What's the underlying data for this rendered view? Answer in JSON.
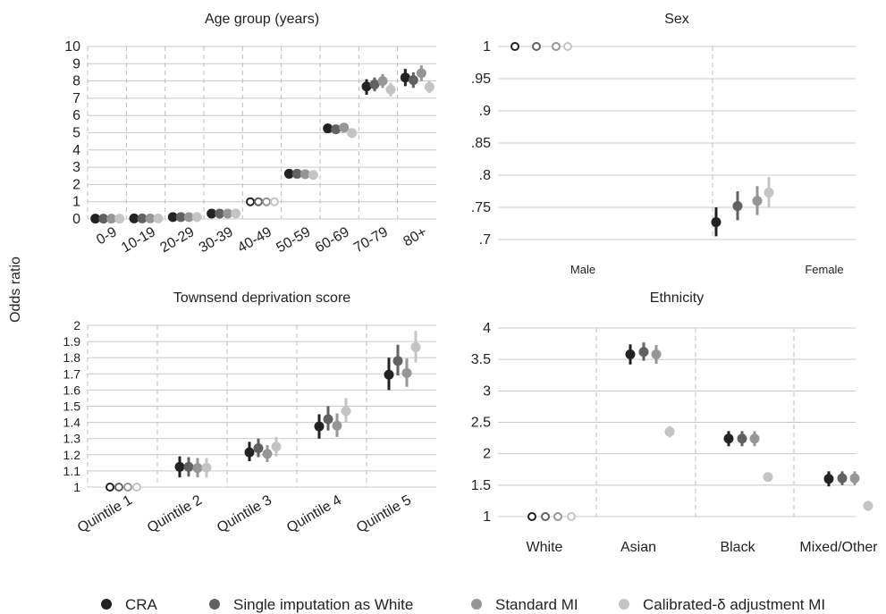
{
  "ylabel": "Odds ratio",
  "colors": {
    "CRA": "#222222",
    "Single imputation as White": "#616161",
    "Standard MI": "#969696",
    "Calibrated-δ adjustment MI": "#c4c4c4",
    "grid": "#c8c8c8",
    "separator": "#bdbdbd"
  },
  "legend": {
    "placement": "bottom",
    "items": [
      "CRA",
      "Single imputation as White",
      "Standard MI",
      "Calibrated-δ adjustment MI"
    ]
  },
  "chart_data": [
    {
      "type": "scatter",
      "title": "Age group (years)",
      "categories": [
        "0-9",
        "10-19",
        "20-29",
        "30-39",
        "40-49",
        "50-59",
        "60-69",
        "70-79",
        "80+"
      ],
      "ylim": [
        0,
        10
      ],
      "yticks": [
        "0",
        "1",
        "2",
        "3",
        "4",
        "5",
        "6",
        "7",
        "8",
        "9",
        "10"
      ],
      "grid": true,
      "reference_category": "40-49",
      "series": [
        {
          "name": "CRA",
          "values": [
            0.02,
            0.03,
            0.11,
            0.31,
            1,
            2.62,
            5.25,
            7.68,
            8.2
          ],
          "ci_low": [
            0.02,
            0.03,
            0.1,
            0.29,
            1,
            2.55,
            5.1,
            7.2,
            7.7
          ],
          "ci_high": [
            0.03,
            0.04,
            0.12,
            0.33,
            1,
            2.7,
            5.4,
            8.1,
            8.7
          ]
        },
        {
          "name": "Single imputation as White",
          "values": [
            0.02,
            0.03,
            0.11,
            0.31,
            1,
            2.62,
            5.2,
            7.8,
            8.05
          ],
          "ci_low": [
            0.02,
            0.03,
            0.1,
            0.29,
            1,
            2.55,
            5.05,
            7.4,
            7.6
          ],
          "ci_high": [
            0.03,
            0.04,
            0.12,
            0.33,
            1,
            2.7,
            5.35,
            8.2,
            8.5
          ]
        },
        {
          "name": "Standard MI",
          "values": [
            0.02,
            0.03,
            0.11,
            0.31,
            1,
            2.6,
            5.3,
            8.0,
            8.45
          ],
          "ci_low": [
            0.02,
            0.03,
            0.1,
            0.29,
            1,
            2.5,
            5.1,
            7.6,
            8.0
          ],
          "ci_high": [
            0.03,
            0.04,
            0.12,
            0.33,
            1,
            2.7,
            5.5,
            8.4,
            8.9
          ]
        },
        {
          "name": "Calibrated-δ adjustment MI",
          "values": [
            0.02,
            0.03,
            0.11,
            0.32,
            1,
            2.55,
            4.98,
            7.5,
            7.65
          ],
          "ci_low": [
            0.02,
            0.03,
            0.1,
            0.3,
            1,
            2.45,
            4.8,
            7.1,
            7.3
          ],
          "ci_high": [
            0.03,
            0.04,
            0.12,
            0.34,
            1,
            2.65,
            5.1,
            7.9,
            8.0
          ]
        }
      ]
    },
    {
      "type": "scatter",
      "title": "Sex",
      "categories": [
        "Male",
        "Female"
      ],
      "ylim": [
        0.7,
        1
      ],
      "yticks": [
        ".7",
        ".75",
        ".8",
        ".85",
        ".9",
        ".95",
        "1"
      ],
      "grid": true,
      "reference_category": "Male",
      "series": [
        {
          "name": "CRA",
          "values": [
            1,
            0.727
          ],
          "ci_low": [
            1,
            0.705
          ],
          "ci_high": [
            1,
            0.75
          ]
        },
        {
          "name": "Single imputation as White",
          "values": [
            1,
            0.752
          ],
          "ci_low": [
            1,
            0.73
          ],
          "ci_high": [
            1,
            0.775
          ]
        },
        {
          "name": "Standard MI",
          "values": [
            1,
            0.76
          ],
          "ci_low": [
            1,
            0.738
          ],
          "ci_high": [
            1,
            0.783
          ]
        },
        {
          "name": "Calibrated-δ adjustment MI",
          "values": [
            1,
            0.773
          ],
          "ci_low": [
            1,
            0.75
          ],
          "ci_high": [
            1,
            0.797
          ]
        }
      ]
    },
    {
      "type": "scatter",
      "title": "Townsend deprivation score",
      "categories": [
        "Quintile 1",
        "Quintile 2",
        "Quintile 3",
        "Quintile 4",
        "Quintile 5"
      ],
      "ylim": [
        1,
        2
      ],
      "yticks": [
        "1",
        "1.1",
        "1.2",
        "1.3",
        "1.4",
        "1.5",
        "1.6",
        "1.7",
        "1.8",
        "1.9",
        "2"
      ],
      "grid": true,
      "reference_category": "Quintile 1",
      "series": [
        {
          "name": "CRA",
          "values": [
            1,
            1.125,
            1.215,
            1.375,
            1.695
          ],
          "ci_low": [
            1,
            1.06,
            1.16,
            1.3,
            1.6
          ],
          "ci_high": [
            1,
            1.19,
            1.28,
            1.45,
            1.8
          ]
        },
        {
          "name": "Single imputation as White",
          "values": [
            1,
            1.125,
            1.24,
            1.42,
            1.78
          ],
          "ci_low": [
            1,
            1.065,
            1.185,
            1.35,
            1.69
          ],
          "ci_high": [
            1,
            1.185,
            1.3,
            1.5,
            1.88
          ]
        },
        {
          "name": "Standard MI",
          "values": [
            1,
            1.118,
            1.205,
            1.38,
            1.705
          ],
          "ci_low": [
            1,
            1.06,
            1.155,
            1.31,
            1.62
          ],
          "ci_high": [
            1,
            1.18,
            1.26,
            1.455,
            1.795
          ]
        },
        {
          "name": "Calibrated-δ adjustment MI",
          "values": [
            1,
            1.12,
            1.25,
            1.47,
            1.865
          ],
          "ci_low": [
            1,
            1.06,
            1.19,
            1.4,
            1.77
          ],
          "ci_high": [
            1,
            1.18,
            1.31,
            1.55,
            1.965
          ]
        }
      ]
    },
    {
      "type": "scatter",
      "title": "Ethnicity",
      "categories": [
        "White",
        "Asian",
        "Black",
        "Mixed/Other"
      ],
      "ylim": [
        1,
        4
      ],
      "yticks": [
        "1",
        "1.5",
        "2",
        "2.5",
        "3",
        "3.5",
        "4"
      ],
      "grid": true,
      "reference_category": "White",
      "series": [
        {
          "name": "CRA",
          "values": [
            1,
            3.58,
            2.24,
            1.6
          ],
          "ci_low": [
            1,
            3.42,
            2.12,
            1.48
          ],
          "ci_high": [
            1,
            3.74,
            2.36,
            1.72
          ]
        },
        {
          "name": "Single imputation as White",
          "values": [
            1,
            3.62,
            2.24,
            1.61
          ],
          "ci_low": [
            1,
            3.48,
            2.12,
            1.5
          ],
          "ci_high": [
            1,
            3.77,
            2.36,
            1.72
          ]
        },
        {
          "name": "Standard MI",
          "values": [
            1,
            3.58,
            2.24,
            1.61
          ],
          "ci_low": [
            1,
            3.43,
            2.12,
            1.5
          ],
          "ci_high": [
            1,
            3.73,
            2.36,
            1.72
          ]
        },
        {
          "name": "Calibrated-δ adjustment MI",
          "values": [
            1,
            2.35,
            1.63,
            1.17
          ],
          "ci_low": [
            1,
            2.26,
            1.57,
            1.09
          ],
          "ci_high": [
            1,
            2.44,
            1.69,
            1.25
          ]
        }
      ]
    }
  ]
}
